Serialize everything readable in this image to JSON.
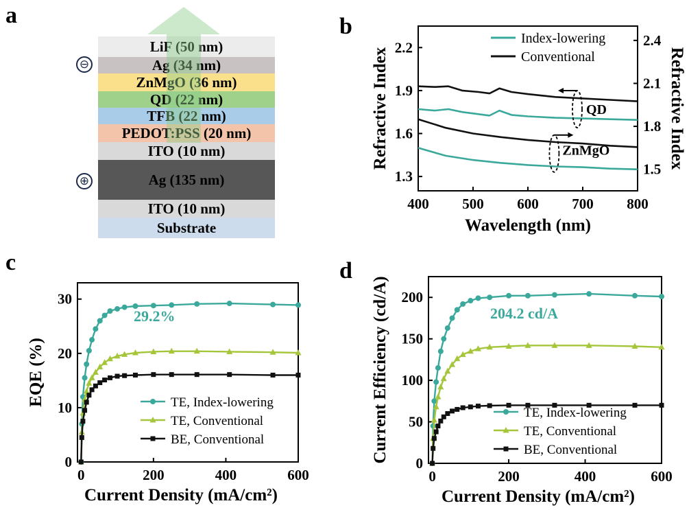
{
  "panels": {
    "a": {
      "letter": "a",
      "layers": [
        {
          "label": "LiF (50 nm)",
          "color": "#ececec"
        },
        {
          "label": "Ag (34 nm)",
          "color": "#c9c2c2"
        },
        {
          "label": "ZnMgO (36 nm)",
          "color": "#fbe08c"
        },
        {
          "label": "QD (22 nm)",
          "color": "#9fd18a"
        },
        {
          "label": "TFB (22 nm)",
          "color": "#a9cde9"
        },
        {
          "label": "PEDOT:PSS (20 nm)",
          "color": "#f4c4aa"
        },
        {
          "label": "ITO (10 nm)",
          "color": "#d9d9d9"
        },
        {
          "label": "Ag (135 nm)",
          "color": "#575757"
        },
        {
          "label": "ITO (10 nm)",
          "color": "#d9d9d9"
        },
        {
          "label": "Substrate",
          "color": "#cddcec"
        }
      ],
      "cathode_symbol": "⊖",
      "anode_symbol": "⊕",
      "arrow_color": "#8fcf8b"
    },
    "b": {
      "letter": "b"
    },
    "c": {
      "letter": "c"
    },
    "d": {
      "letter": "d"
    }
  },
  "chart_data": [
    {
      "panel": "b",
      "type": "line",
      "xlabel": "Wavelength (nm)",
      "ylabel": "Refractive Index",
      "y2label": "Refractive Index",
      "xlim": [
        400,
        800
      ],
      "ylim": [
        1.2,
        2.35
      ],
      "y2lim": [
        1.35,
        2.5
      ],
      "xticks": [
        400,
        500,
        600,
        700,
        800
      ],
      "yticks": [
        1.3,
        1.6,
        1.9,
        2.2
      ],
      "y2ticks": [
        1.5,
        1.8,
        2.1,
        2.4
      ],
      "legend": [
        {
          "name": "Index-lowering",
          "color": "#3aa89a"
        },
        {
          "name": "Conventional",
          "color": "#111111"
        }
      ],
      "legend_position": "top-right",
      "annotations": [
        "QD",
        "ZnMgO"
      ],
      "series": [
        {
          "group": "Conventional",
          "material": "QD",
          "axis": "right",
          "color": "#111111",
          "x": [
            400,
            430,
            455,
            480,
            510,
            530,
            548,
            570,
            600,
            650,
            700,
            750,
            800
          ],
          "y": [
            2.08,
            2.075,
            2.08,
            2.05,
            2.04,
            2.03,
            2.065,
            2.04,
            2.025,
            2.005,
            1.995,
            1.985,
            1.975
          ]
        },
        {
          "group": "Index-lowering",
          "material": "QD",
          "axis": "right",
          "color": "#3aa89a",
          "x": [
            400,
            430,
            455,
            480,
            510,
            530,
            548,
            570,
            600,
            650,
            700,
            750,
            800
          ],
          "y": [
            1.92,
            1.91,
            1.92,
            1.9,
            1.885,
            1.875,
            1.91,
            1.88,
            1.87,
            1.86,
            1.855,
            1.85,
            1.845
          ]
        },
        {
          "group": "Conventional",
          "material": "ZnMgO",
          "axis": "left",
          "color": "#111111",
          "x": [
            400,
            450,
            500,
            550,
            600,
            650,
            700,
            750,
            800
          ],
          "y": [
            1.7,
            1.64,
            1.6,
            1.575,
            1.555,
            1.54,
            1.53,
            1.515,
            1.505
          ]
        },
        {
          "group": "Index-lowering",
          "material": "ZnMgO",
          "axis": "left",
          "color": "#3aa89a",
          "x": [
            400,
            450,
            500,
            550,
            600,
            650,
            700,
            750,
            800
          ],
          "y": [
            1.5,
            1.445,
            1.415,
            1.395,
            1.38,
            1.37,
            1.365,
            1.355,
            1.35
          ]
        }
      ]
    },
    {
      "panel": "c",
      "type": "line",
      "xlabel": "Current Density (mA/cm²)",
      "ylabel": "EQE (%)",
      "xlim": [
        -10,
        600
      ],
      "ylim": [
        0,
        33
      ],
      "xticks": [
        0,
        200,
        400,
        600
      ],
      "yticks": [
        0,
        10,
        20,
        30
      ],
      "legend_position": "bottom-right",
      "annotation": "29.2%",
      "series": [
        {
          "name": "TE, Index-lowering",
          "color": "#3aa89a",
          "marker": "circle",
          "x": [
            0,
            2,
            5,
            10,
            15,
            22,
            30,
            40,
            52,
            65,
            80,
            100,
            120,
            150,
            200,
            250,
            320,
            410,
            530,
            600
          ],
          "y": [
            0,
            7,
            12,
            15.5,
            18,
            20.5,
            22.5,
            24.5,
            26,
            27,
            27.8,
            28.2,
            28.5,
            28.7,
            28.8,
            28.9,
            29.1,
            29.2,
            29,
            28.9
          ]
        },
        {
          "name": "TE, Conventional",
          "color": "#a5c63b",
          "marker": "triangle",
          "x": [
            0,
            2,
            5,
            10,
            15,
            22,
            30,
            40,
            52,
            65,
            80,
            100,
            120,
            150,
            200,
            250,
            320,
            410,
            530,
            600
          ],
          "y": [
            0,
            5.5,
            9,
            11.5,
            13,
            14.5,
            15.5,
            16.5,
            17.5,
            18.3,
            19,
            19.5,
            19.8,
            20.1,
            20.3,
            20.4,
            20.4,
            20.3,
            20.2,
            20.1
          ]
        },
        {
          "name": "BE, Conventional",
          "color": "#111111",
          "marker": "square",
          "x": [
            0,
            2,
            5,
            10,
            15,
            22,
            30,
            40,
            52,
            65,
            80,
            100,
            120,
            150,
            200,
            250,
            320,
            410,
            530,
            600
          ],
          "y": [
            0,
            4.5,
            7.5,
            9.5,
            11,
            12.3,
            13.3,
            14,
            14.6,
            15.1,
            15.5,
            15.8,
            15.9,
            16,
            16.1,
            16.1,
            16.1,
            16.1,
            16,
            16
          ]
        }
      ]
    },
    {
      "panel": "d",
      "type": "line",
      "xlabel": "Current Density (mA/cm²)",
      "ylabel": "Current Efficiency (cd/A)",
      "xlim": [
        -10,
        600
      ],
      "ylim": [
        0,
        225
      ],
      "xticks": [
        0,
        200,
        400,
        600
      ],
      "yticks": [
        0,
        50,
        100,
        150,
        200
      ],
      "legend_position": "bottom-right",
      "annotation": "204.2 cd/A",
      "series": [
        {
          "name": "TE, Index-lowering",
          "color": "#3aa89a",
          "marker": "circle",
          "x": [
            0,
            2,
            5,
            10,
            15,
            22,
            30,
            40,
            52,
            65,
            80,
            100,
            120,
            150,
            200,
            250,
            320,
            410,
            530,
            600
          ],
          "y": [
            0,
            45,
            75,
            98,
            115,
            135,
            150,
            163,
            175,
            185,
            192,
            196,
            199,
            200,
            202,
            202,
            203,
            204.2,
            202,
            201
          ]
        },
        {
          "name": "TE, Conventional",
          "color": "#a5c63b",
          "marker": "triangle",
          "x": [
            0,
            2,
            5,
            10,
            15,
            22,
            30,
            40,
            52,
            65,
            80,
            100,
            120,
            150,
            200,
            250,
            320,
            410,
            530,
            600
          ],
          "y": [
            0,
            30,
            52,
            68,
            80,
            92,
            102,
            111,
            119,
            126,
            131,
            135,
            138,
            140,
            141,
            142,
            142,
            142,
            141,
            140
          ]
        },
        {
          "name": "BE, Conventional",
          "color": "#111111",
          "marker": "square",
          "x": [
            0,
            2,
            5,
            10,
            15,
            22,
            30,
            40,
            52,
            65,
            80,
            100,
            120,
            150,
            200,
            250,
            320,
            410,
            530,
            600
          ],
          "y": [
            0,
            18,
            30,
            38,
            45,
            51,
            56,
            60,
            63,
            65,
            67,
            68,
            69,
            69.5,
            70,
            70,
            70,
            70,
            70,
            70
          ]
        }
      ]
    }
  ]
}
